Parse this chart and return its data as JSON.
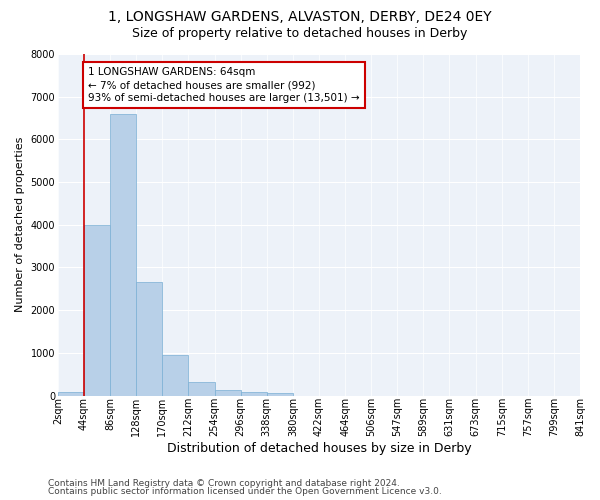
{
  "title": "1, LONGSHAW GARDENS, ALVASTON, DERBY, DE24 0EY",
  "subtitle": "Size of property relative to detached houses in Derby",
  "xlabel": "Distribution of detached houses by size in Derby",
  "ylabel": "Number of detached properties",
  "bar_values": [
    75,
    4000,
    6600,
    2650,
    950,
    320,
    130,
    90,
    60,
    0,
    0,
    0,
    0,
    0,
    0,
    0,
    0,
    0,
    0,
    0
  ],
  "bar_labels": [
    "2sqm",
    "44sqm",
    "86sqm",
    "128sqm",
    "170sqm",
    "212sqm",
    "254sqm",
    "296sqm",
    "338sqm",
    "380sqm",
    "422sqm",
    "464sqm",
    "506sqm",
    "547sqm",
    "589sqm",
    "631sqm",
    "673sqm",
    "715sqm",
    "757sqm",
    "799sqm",
    "841sqm"
  ],
  "bar_color": "#b8d0e8",
  "bar_edge_color": "#7aafd4",
  "vline_x_bar": 1,
  "vline_color": "#cc0000",
  "annotation_text": "1 LONGSHAW GARDENS: 64sqm\n← 7% of detached houses are smaller (992)\n93% of semi-detached houses are larger (13,501) →",
  "annotation_box_color": "#cc0000",
  "ylim": [
    0,
    8000
  ],
  "yticks": [
    0,
    1000,
    2000,
    3000,
    4000,
    5000,
    6000,
    7000,
    8000
  ],
  "footnote1": "Contains HM Land Registry data © Crown copyright and database right 2024.",
  "footnote2": "Contains public sector information licensed under the Open Government Licence v3.0.",
  "background_color": "#edf2f9",
  "grid_color": "#ffffff",
  "title_fontsize": 10,
  "subtitle_fontsize": 9,
  "xlabel_fontsize": 9,
  "ylabel_fontsize": 8,
  "tick_fontsize": 7,
  "annotation_fontsize": 7.5,
  "footnote_fontsize": 6.5
}
